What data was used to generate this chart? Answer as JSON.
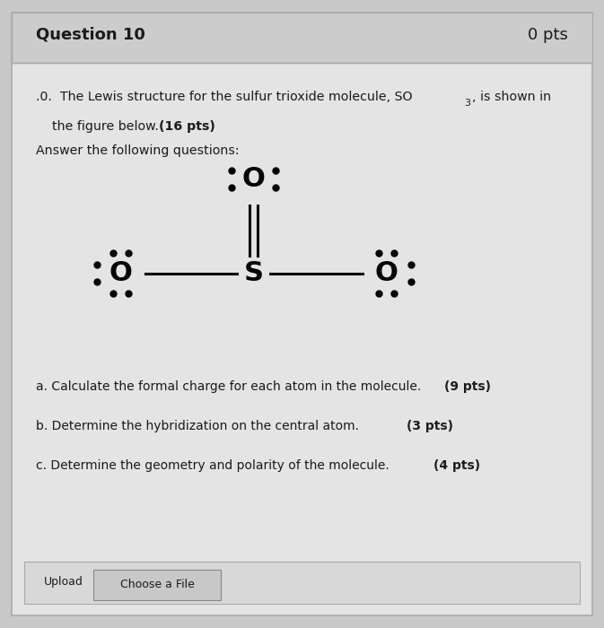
{
  "bg_color": "#c8c8c8",
  "panel_color": "#e4e4e4",
  "title": "Question 10",
  "pts_label": "0 pts",
  "answer_text": "Answer the following questions:",
  "upload_label": "Upload",
  "choose_file": "Choose a File",
  "font_color": "#1a1a1a",
  "title_fontsize": 13,
  "body_fontsize": 10.5,
  "Sx": 0.42,
  "Sy": 0.565,
  "Otx": 0.42,
  "Oty": 0.715,
  "Olx": 0.2,
  "Oly": 0.565,
  "Orx": 0.64,
  "Ory": 0.565
}
